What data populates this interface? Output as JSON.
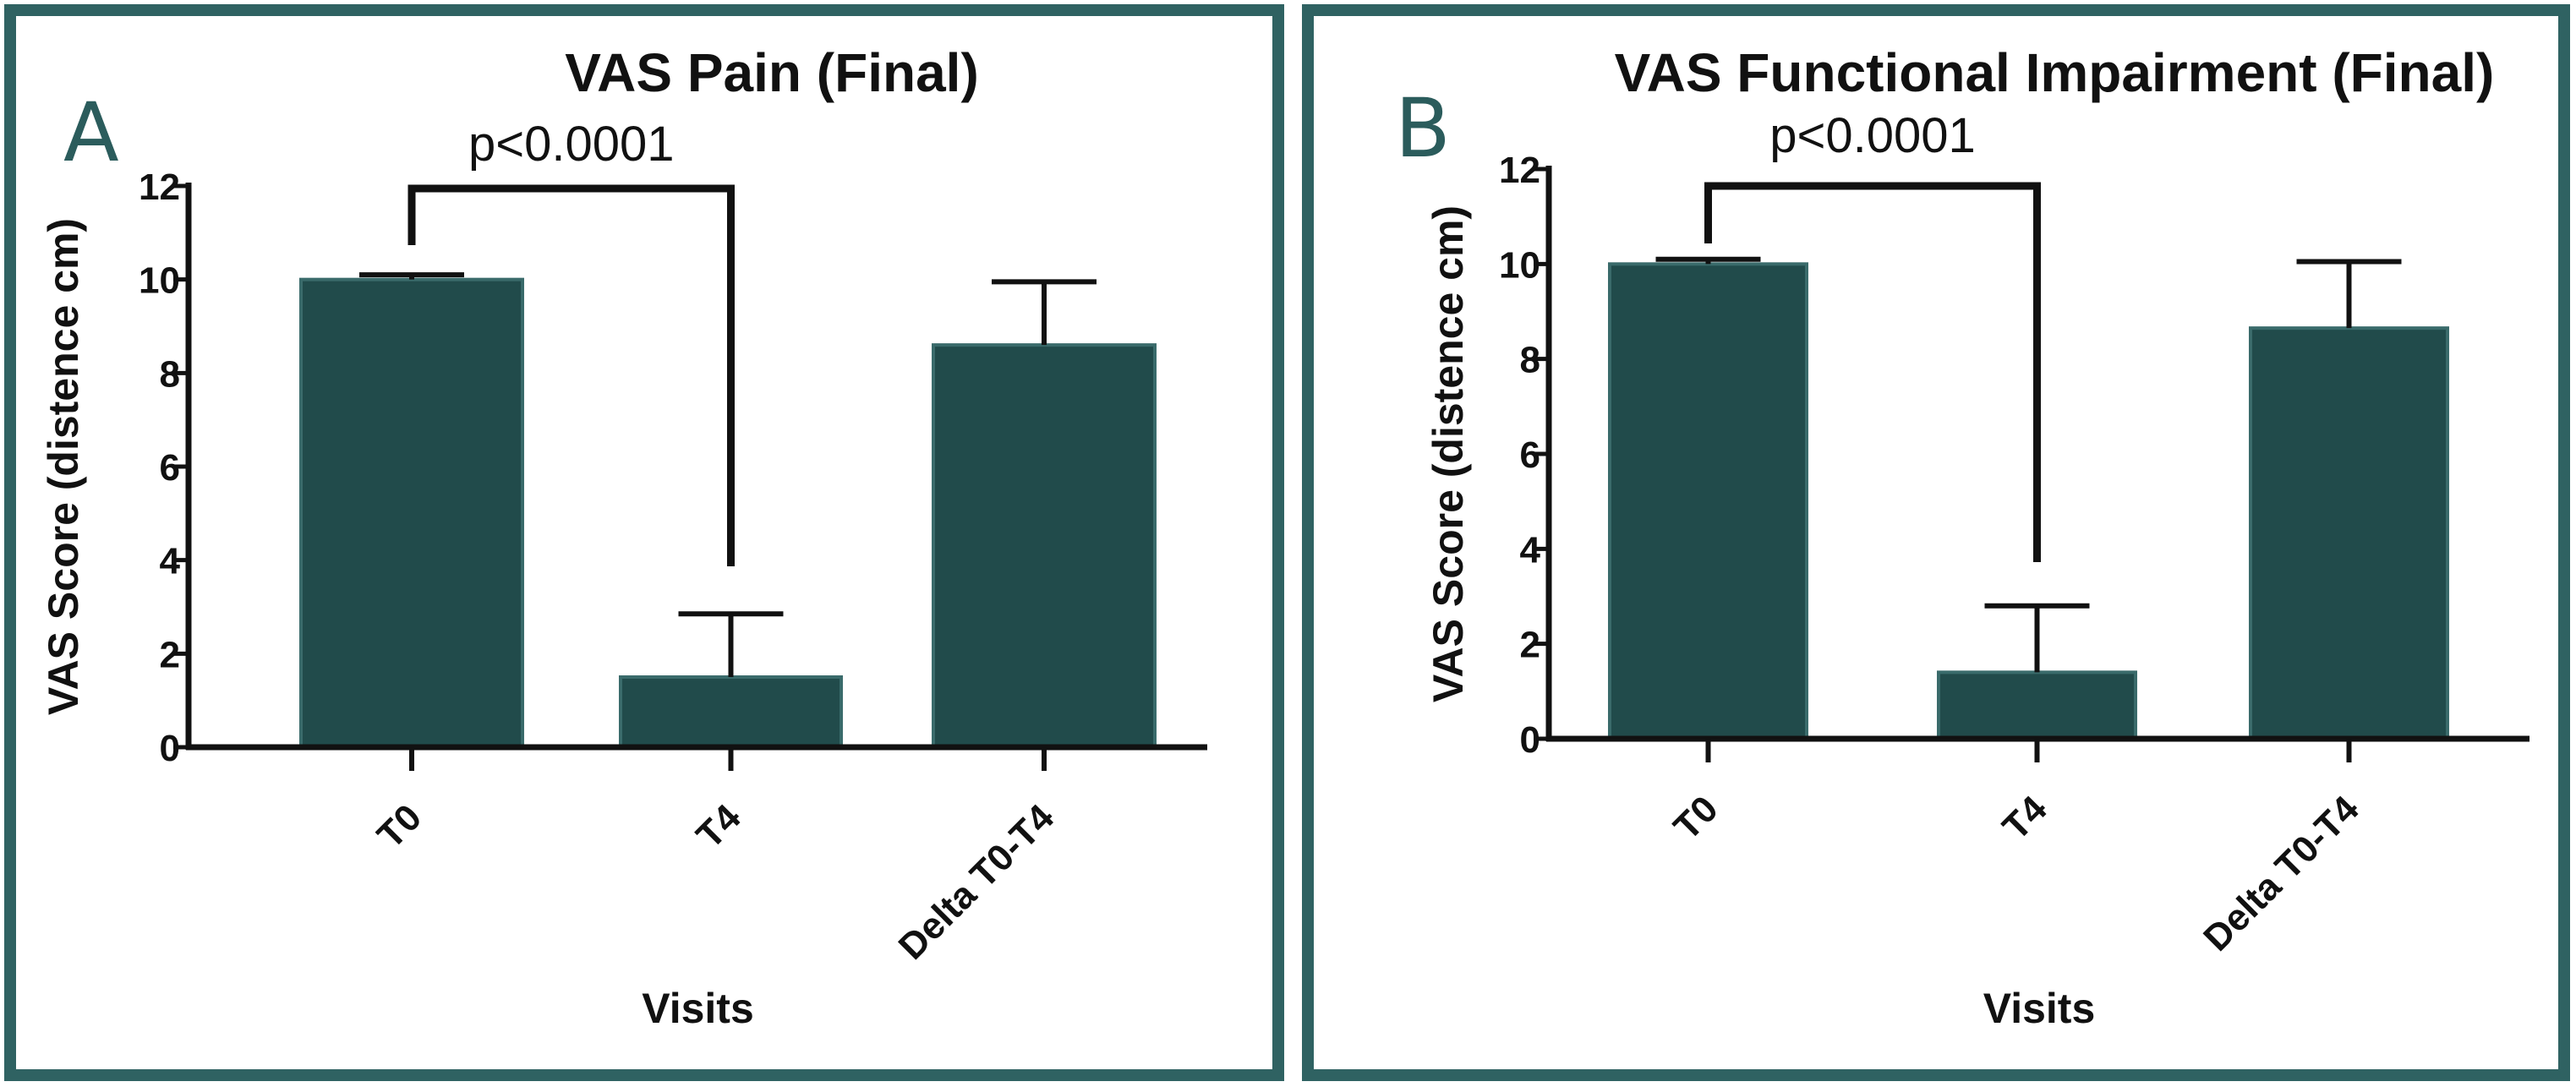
{
  "colors": {
    "bar": "#214b4b",
    "bar_edge": "#3a6b6b",
    "frame": "#2f6262",
    "ink": "#111111"
  },
  "chart_data": [
    {
      "type": "bar",
      "panel_label": "A",
      "title": "VAS Pain (Final)",
      "xlabel": "Visits",
      "ylabel": "VAS Score (distence cm)",
      "ylim": [
        0,
        12
      ],
      "yticks": [
        "0",
        "2",
        "4",
        "6",
        "8",
        "10",
        "12"
      ],
      "categories": [
        "T0",
        "T4",
        "Delta T0-T4"
      ],
      "values": [
        10.0,
        1.5,
        8.6
      ],
      "error_upper": [
        10.1,
        2.85,
        9.95
      ],
      "grid": false,
      "annotation": {
        "text": "p<0.0001",
        "between": [
          "T0",
          "T4"
        ]
      }
    },
    {
      "type": "bar",
      "panel_label": "B",
      "title": "VAS Functional Impairment (Final)",
      "xlabel": "Visits",
      "ylabel": "VAS Score (distence cm)",
      "ylim": [
        0,
        12
      ],
      "yticks": [
        "0",
        "2",
        "4",
        "6",
        "8",
        "10",
        "12"
      ],
      "categories": [
        "T0",
        "T4",
        "Delta T0-T4"
      ],
      "values": [
        10.0,
        1.4,
        8.65
      ],
      "error_upper": [
        10.1,
        2.8,
        10.05
      ],
      "grid": false,
      "annotation": {
        "text": "p<0.0001",
        "between": [
          "T0",
          "T4"
        ]
      }
    }
  ]
}
